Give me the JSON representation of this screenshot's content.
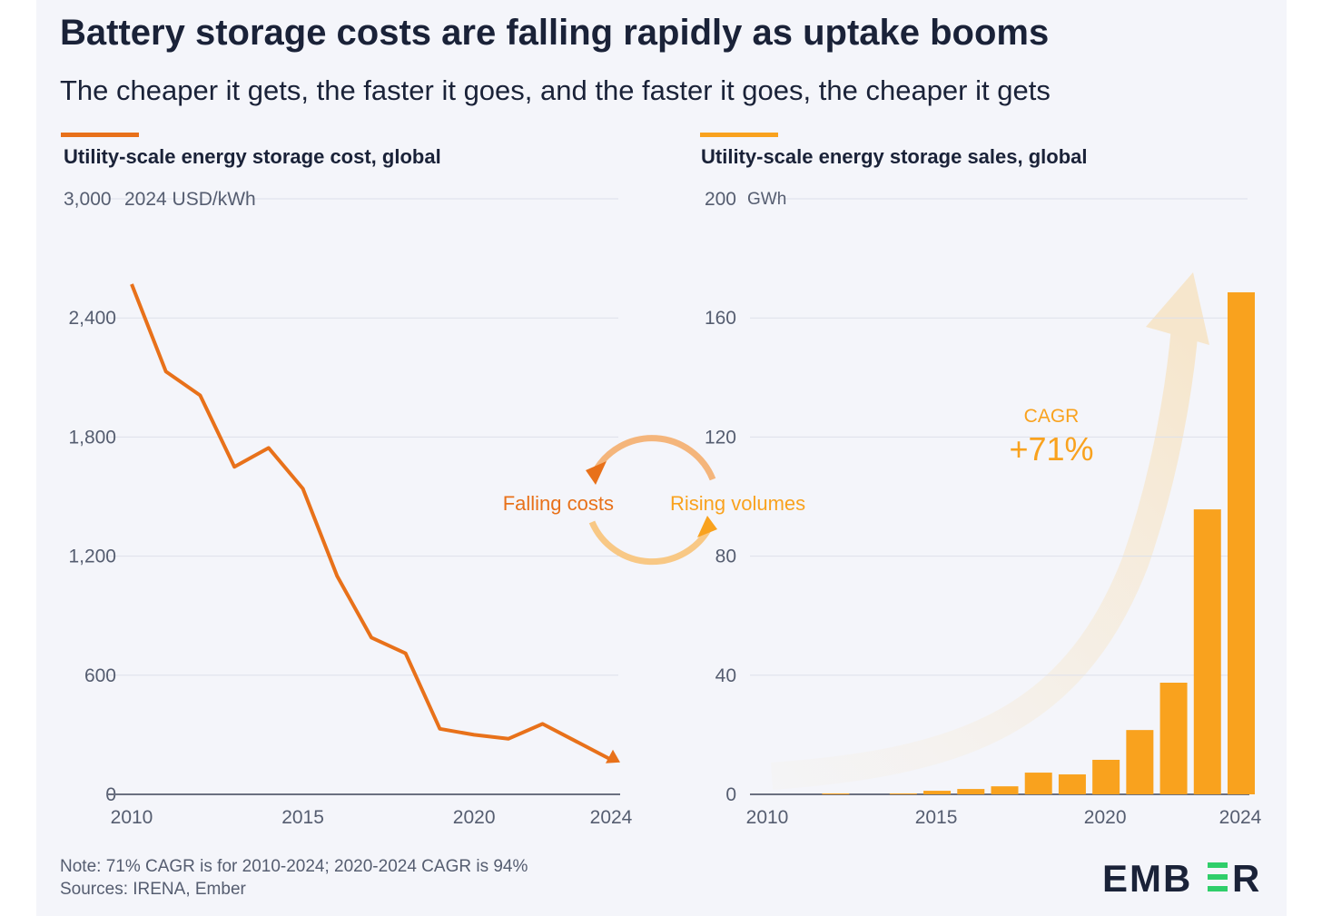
{
  "title": "Battery storage costs are falling rapidly as uptake booms",
  "subtitle": "The cheaper it gets, the faster it goes, and the faster it goes, the cheaper it gets",
  "colors": {
    "cost": "#e8711a",
    "sales": "#f9a21e",
    "text": "#1a2238",
    "brand_green": "#2fce6a"
  },
  "chart_data": [
    {
      "type": "line",
      "title": "Utility-scale energy storage cost, global",
      "ylabel": "2024 USD/kWh",
      "ylim": [
        0,
        3000
      ],
      "yticks": [
        "0",
        "600",
        "1,200",
        "1,800",
        "2,400",
        "3,000"
      ],
      "ytick_values": [
        0,
        600,
        1200,
        1800,
        2400,
        3000
      ],
      "xticks": [
        "2010",
        "2015",
        "2020",
        "2024"
      ],
      "xtick_values": [
        2010,
        2015,
        2020,
        2024
      ],
      "x": [
        2010,
        2011,
        2012,
        2013,
        2014,
        2015,
        2016,
        2017,
        2018,
        2019,
        2020,
        2021,
        2022,
        2023,
        2024
      ],
      "values": [
        2570,
        2130,
        2010,
        1650,
        1745,
        1540,
        1100,
        790,
        710,
        330,
        300,
        280,
        355,
        265,
        175
      ]
    },
    {
      "type": "bar",
      "title": "Utility-scale energy storage sales, global",
      "ylabel": "GWh",
      "ylim": [
        0,
        200
      ],
      "yticks": [
        "0",
        "40",
        "80",
        "120",
        "160",
        "200"
      ],
      "ytick_values": [
        0,
        40,
        80,
        120,
        160,
        200
      ],
      "xticks": [
        "2010",
        "2015",
        "2020",
        "2024"
      ],
      "xtick_values": [
        2010,
        2015,
        2020,
        2024
      ],
      "x": [
        2010,
        2011,
        2012,
        2013,
        2014,
        2015,
        2016,
        2017,
        2018,
        2019,
        2020,
        2021,
        2022,
        2023,
        2024
      ],
      "values": [
        0,
        0,
        0.3,
        0,
        0.3,
        1.2,
        1.8,
        2.7,
        7.3,
        6.7,
        11.6,
        21.6,
        37.5,
        95.7,
        168.6
      ],
      "annotation": {
        "label": "CAGR",
        "value": "+71%"
      }
    }
  ],
  "cycle": {
    "left": "Falling costs",
    "right": "Rising volumes"
  },
  "note": "Note: 71% CAGR is for 2010-2024; 2020-2024 CAGR is 94%",
  "sources": "Sources: IRENA, Ember",
  "logo": "EMBER"
}
